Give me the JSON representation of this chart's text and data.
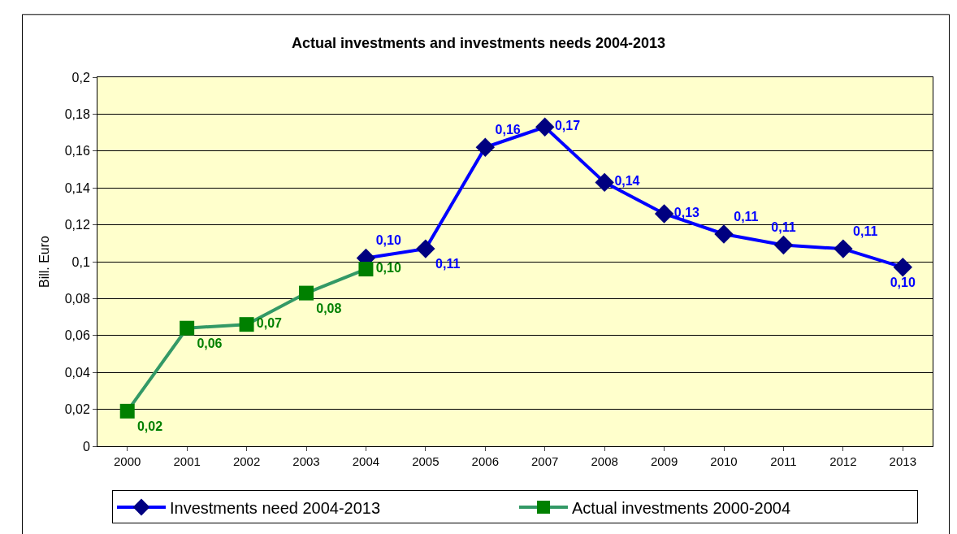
{
  "chart_data": {
    "type": "line",
    "title": "Actual investments and investments needs 2004-2013",
    "ylabel": "Bill. Euro",
    "categories": [
      "2000",
      "2001",
      "2002",
      "2003",
      "2004",
      "2005",
      "2006",
      "2007",
      "2008",
      "2009",
      "2010",
      "2011",
      "2012",
      "2013"
    ],
    "series": [
      {
        "name": "Investments need 2004-2013",
        "color": "#0000ff",
        "marker": "diamond",
        "values": [
          null,
          null,
          null,
          null,
          0.102,
          0.107,
          0.162,
          0.173,
          0.143,
          0.126,
          0.115,
          0.109,
          0.107,
          0.097
        ],
        "value_labels": [
          null,
          null,
          null,
          null,
          "0,10",
          "0,11",
          "0,16",
          "0,17",
          "0,14",
          "0,13",
          "0,11",
          "0,11",
          "0,11",
          "0,10"
        ]
      },
      {
        "name": "Actual investments 2000-2004",
        "color": "#339966",
        "marker": "square",
        "values": [
          0.019,
          0.064,
          0.066,
          0.083,
          0.096,
          null,
          null,
          null,
          null,
          null,
          null,
          null,
          null,
          null
        ],
        "value_labels": [
          "0,02",
          "0,06",
          "0,07",
          "0,08",
          "0,10",
          null,
          null,
          null,
          null,
          null,
          null,
          null,
          null,
          null
        ]
      }
    ],
    "ylim": [
      0,
      0.2
    ],
    "yticks": [
      {
        "value": 0,
        "label": "0"
      },
      {
        "value": 0.02,
        "label": "0,02"
      },
      {
        "value": 0.04,
        "label": "0,04"
      },
      {
        "value": 0.06,
        "label": "0,06"
      },
      {
        "value": 0.08,
        "label": "0,08"
      },
      {
        "value": 0.1,
        "label": "0,1"
      },
      {
        "value": 0.12,
        "label": "0,12"
      },
      {
        "value": 0.14,
        "label": "0,14"
      },
      {
        "value": 0.16,
        "label": "0,16"
      },
      {
        "value": 0.18,
        "label": "0,18"
      },
      {
        "value": 0.2,
        "label": "0,2"
      }
    ],
    "grid": "y",
    "legend": "bottom",
    "line_style": "solid"
  }
}
